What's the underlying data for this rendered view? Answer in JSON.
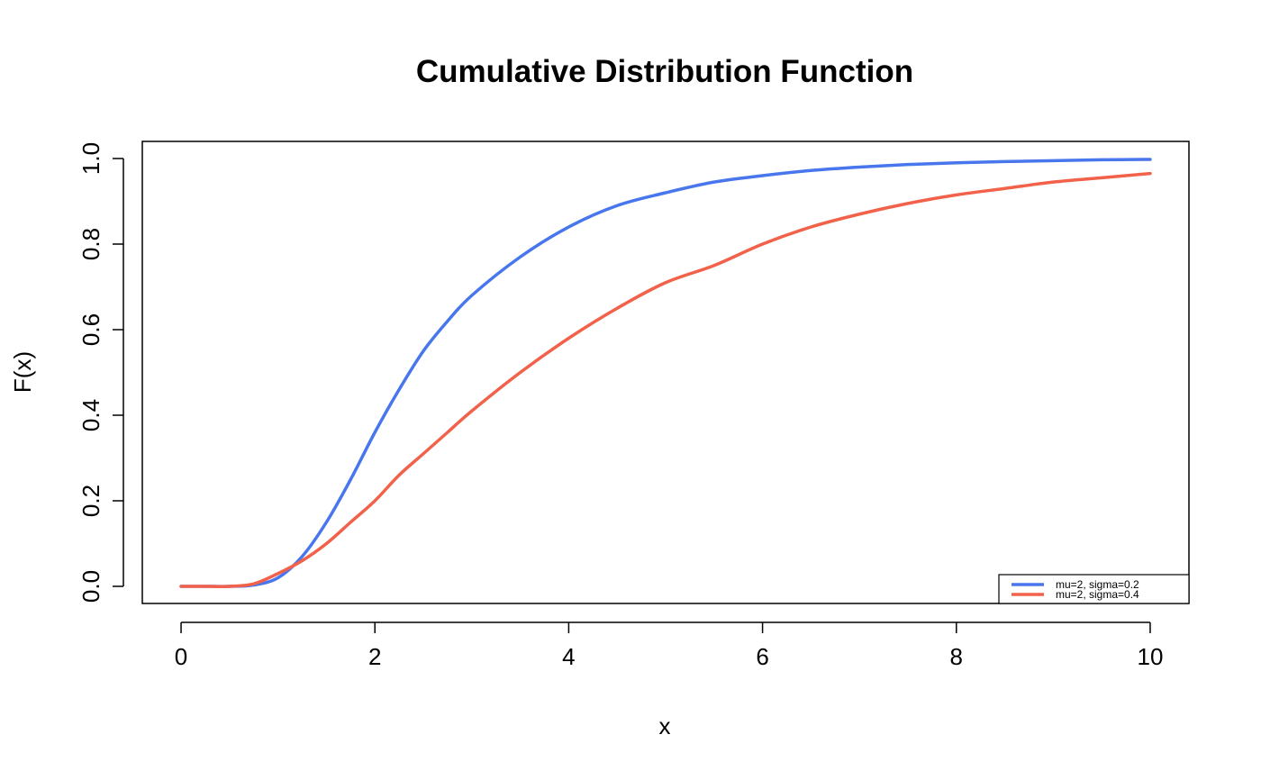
{
  "chart_data": {
    "type": "line",
    "title": "Cumulative Distribution Function",
    "xlabel": "x",
    "ylabel": "F(x)",
    "xlim": [
      -0.4,
      10.4
    ],
    "ylim": [
      -0.04,
      1.04
    ],
    "x_ticks": [
      0,
      2,
      4,
      6,
      8,
      10
    ],
    "x_tick_labels": [
      "0",
      "2",
      "4",
      "6",
      "8",
      "10"
    ],
    "y_ticks": [
      0.0,
      0.2,
      0.4,
      0.6,
      0.8,
      1.0
    ],
    "y_tick_labels": [
      "0.0",
      "0.2",
      "0.4",
      "0.6",
      "0.8",
      "1.0"
    ],
    "grid": false,
    "legend_position": "bottom-right",
    "x": [
      0,
      0.25,
      0.5,
      0.75,
      1.0,
      1.25,
      1.5,
      1.75,
      2.0,
      2.25,
      2.5,
      2.75,
      3.0,
      3.5,
      4.0,
      4.5,
      5.0,
      5.5,
      6.0,
      6.5,
      7.0,
      7.5,
      8.0,
      8.5,
      9.0,
      9.5,
      10.0
    ],
    "series": [
      {
        "name": "mu=2, sigma=0.2",
        "color": "#4876ED",
        "values": [
          0.0,
          0.0,
          0.0,
          0.003,
          0.02,
          0.07,
          0.15,
          0.25,
          0.36,
          0.46,
          0.55,
          0.62,
          0.68,
          0.77,
          0.84,
          0.89,
          0.92,
          0.945,
          0.96,
          0.972,
          0.98,
          0.986,
          0.99,
          0.993,
          0.995,
          0.997,
          0.998
        ]
      },
      {
        "name": "mu=2, sigma=0.4",
        "color": "#F2614A",
        "values": [
          0.0,
          0.0,
          0.0,
          0.006,
          0.03,
          0.06,
          0.1,
          0.15,
          0.2,
          0.26,
          0.31,
          0.36,
          0.41,
          0.5,
          0.58,
          0.65,
          0.71,
          0.75,
          0.8,
          0.84,
          0.87,
          0.895,
          0.915,
          0.93,
          0.945,
          0.955,
          0.965
        ]
      }
    ]
  }
}
